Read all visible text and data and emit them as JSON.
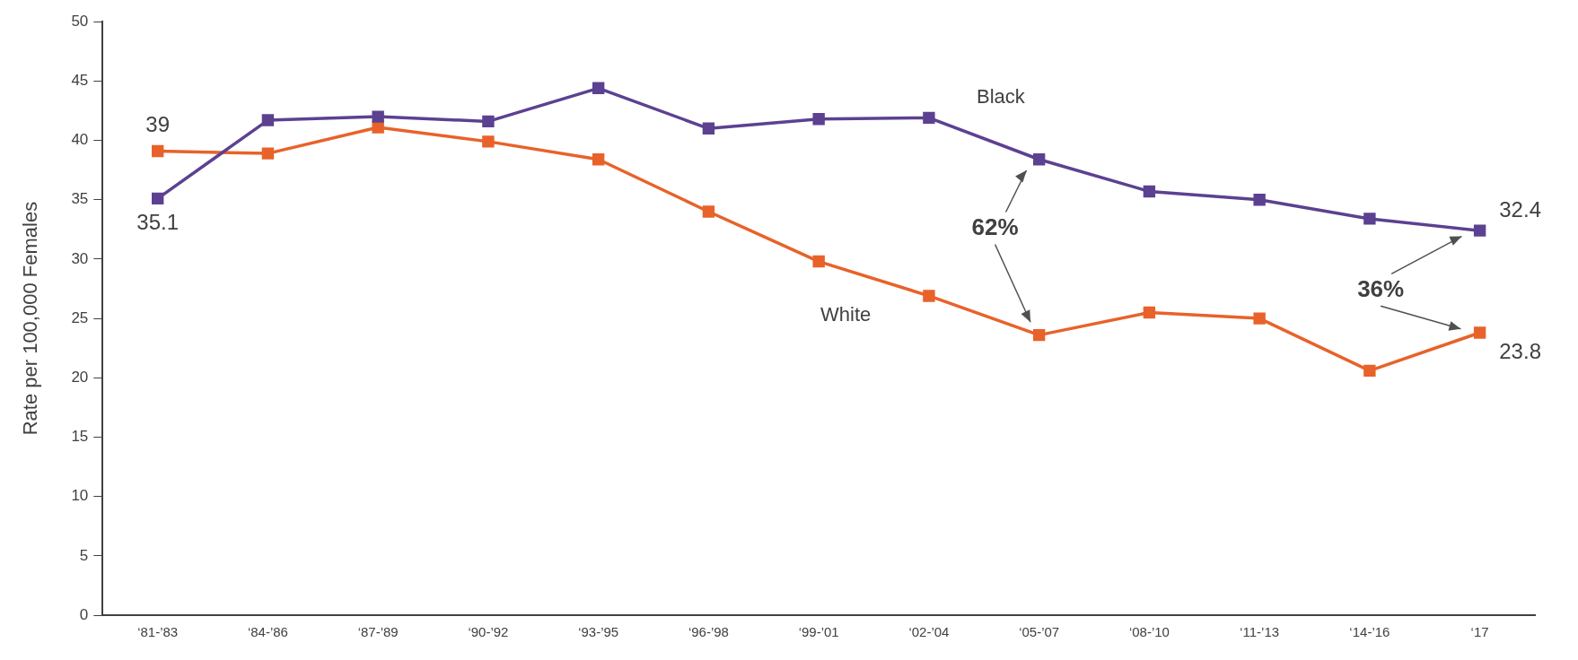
{
  "chart_data": {
    "type": "line",
    "ylabel": "Rate per 100,000 Females",
    "categories": [
      "‘81-’83",
      "‘84-’86",
      "‘87-’89",
      "‘90-’92",
      "‘93-’95",
      "‘96-’98",
      "‘99-’01",
      "‘02-’04",
      "‘05-’07",
      "‘08-’10",
      "‘11-’13",
      "‘14-’16",
      "‘17"
    ],
    "series": [
      {
        "name": "Black",
        "color": "#5c4191",
        "values": [
          35.1,
          41.7,
          42.0,
          41.6,
          44.4,
          41.0,
          41.8,
          41.9,
          38.4,
          35.7,
          35.0,
          33.4,
          32.4
        ],
        "value_labels": [
          "35.1",
          null,
          null,
          null,
          null,
          null,
          null,
          null,
          null,
          null,
          null,
          null,
          "32.4"
        ]
      },
      {
        "name": "White",
        "color": "#e8622a",
        "values": [
          39.1,
          38.9,
          41.1,
          39.9,
          38.4,
          34.0,
          29.8,
          26.9,
          23.6,
          25.5,
          25.0,
          20.6,
          23.8
        ],
        "value_labels": [
          "39",
          null,
          null,
          null,
          null,
          null,
          null,
          null,
          null,
          null,
          null,
          null,
          "23.8"
        ]
      }
    ],
    "ylim": [
      0,
      50
    ],
    "yticks": [
      0,
      5,
      10,
      15,
      20,
      25,
      30,
      35,
      40,
      45,
      50
    ],
    "grid": false,
    "legend": false,
    "marker": "square",
    "line_style": "solid",
    "annotations": [
      "62%",
      "36%"
    ]
  }
}
